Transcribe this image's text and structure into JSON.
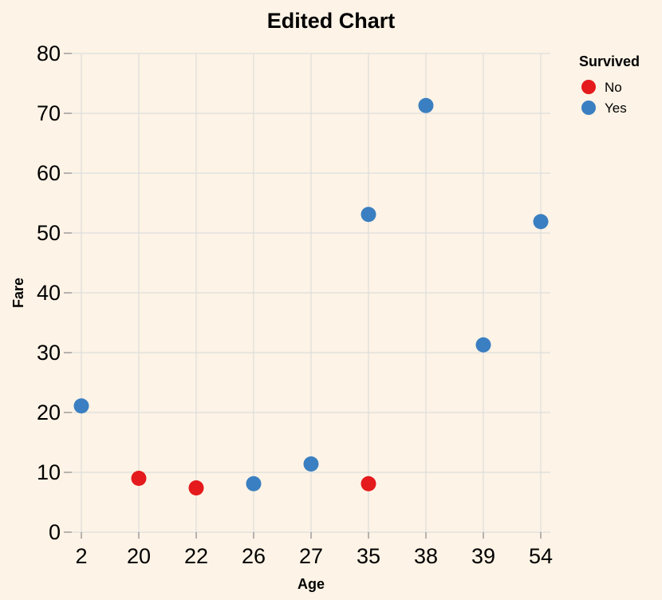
{
  "chart_data": {
    "type": "scatter",
    "title": "Edited Chart",
    "xlabel": "Age",
    "ylabel": "Fare",
    "x_scale": "point",
    "categories": [
      "2",
      "20",
      "22",
      "26",
      "27",
      "35",
      "38",
      "39",
      "54"
    ],
    "ylim": [
      0,
      80
    ],
    "yticks": [
      0,
      10,
      20,
      30,
      40,
      50,
      60,
      70,
      80
    ],
    "grid": true,
    "legend": {
      "title": "Survived",
      "placement": "top-right",
      "items": [
        {
          "label": "No",
          "color": "#e41a1c"
        },
        {
          "label": "Yes",
          "color": "#3a7fc1"
        }
      ]
    },
    "series": [
      {
        "name": "No",
        "color": "#e41a1c",
        "points": [
          {
            "x": "20",
            "y": 9.0
          },
          {
            "x": "22",
            "y": 7.4
          },
          {
            "x": "35",
            "y": 8.1
          }
        ]
      },
      {
        "name": "Yes",
        "color": "#3a7fc1",
        "points": [
          {
            "x": "2",
            "y": 21.1
          },
          {
            "x": "26",
            "y": 8.1
          },
          {
            "x": "27",
            "y": 11.4
          },
          {
            "x": "35",
            "y": 53.1
          },
          {
            "x": "38",
            "y": 71.3
          },
          {
            "x": "39",
            "y": 31.3
          },
          {
            "x": "54",
            "y": 51.9
          }
        ]
      }
    ]
  }
}
